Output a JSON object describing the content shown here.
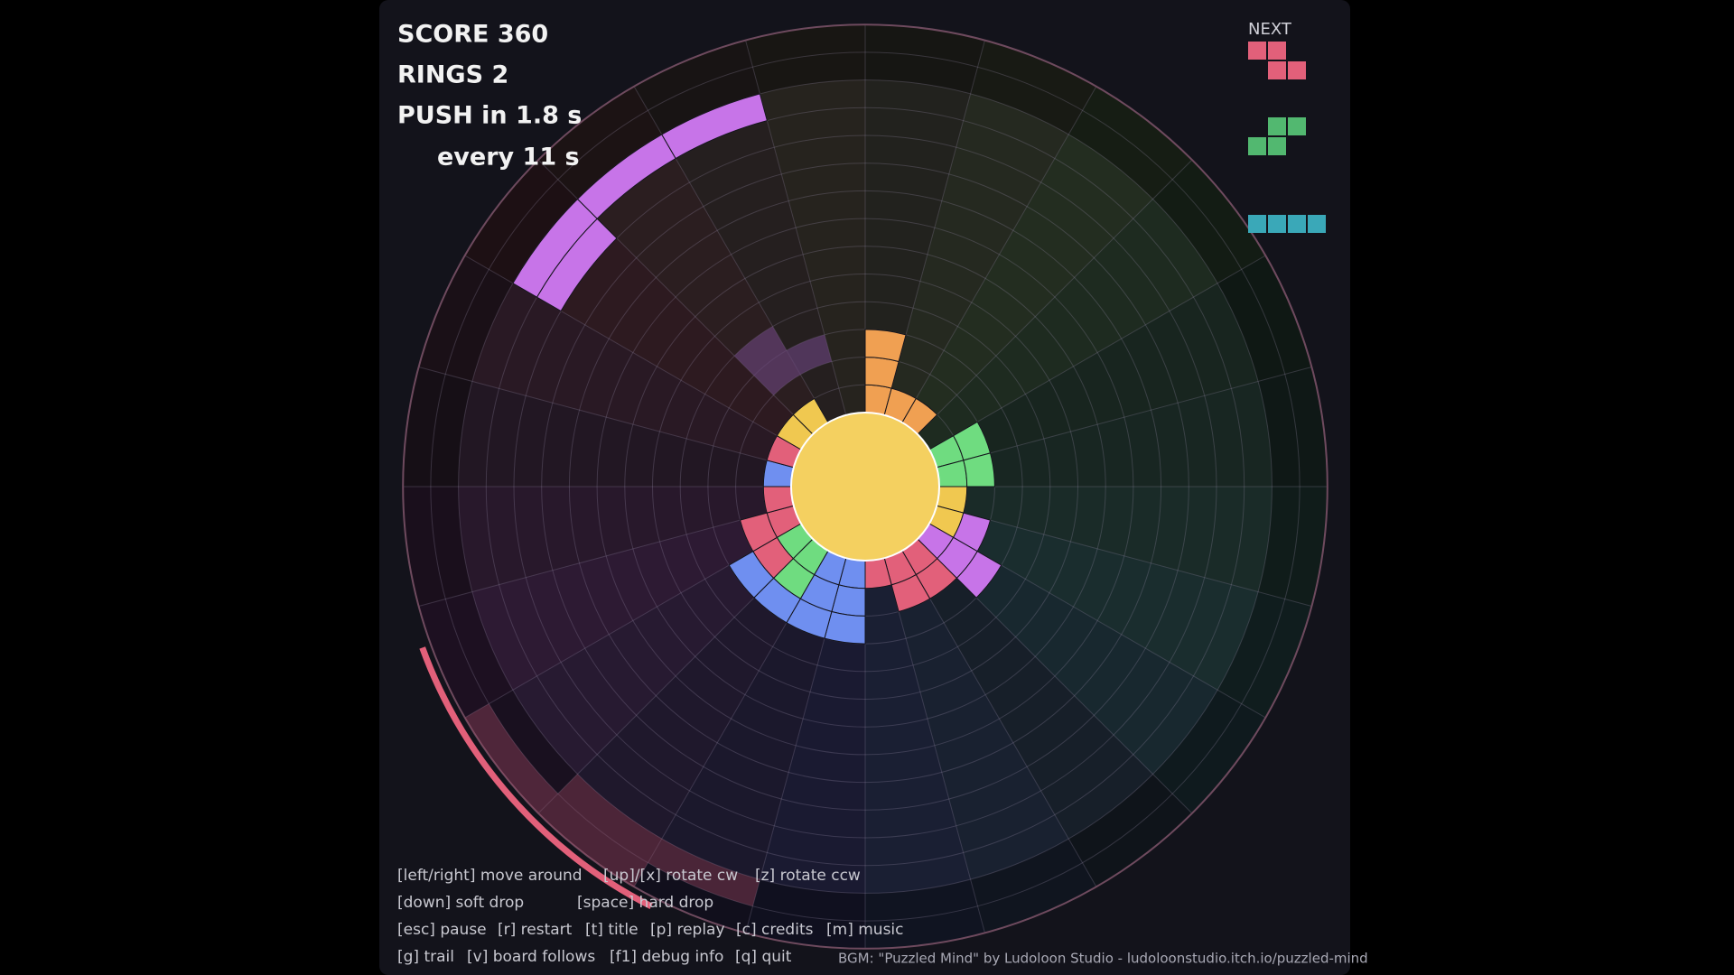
{
  "hud": {
    "score": "SCORE  360",
    "rings": "RINGS  2",
    "push": "PUSH in 1.8 s",
    "every": "every 11 s"
  },
  "next_label": "NEXT",
  "controls": {
    "lines": [
      [
        "[left/right] move around",
        "[up]/[x] rotate cw",
        "[z] rotate ccw"
      ],
      [
        "[down] soft drop",
        "[space] hard drop"
      ],
      [
        "[esc] pause",
        "[r] restart",
        "[t] title",
        "[p] replay",
        "[c] credits",
        "[m] music"
      ],
      [
        "[g] trail",
        "[v] board follows",
        "[f1] debug info",
        "[q] quit"
      ]
    ]
  },
  "credit": "BGM: \"Puzzled Mind\" by Ludoloon Studio - ludoloonstudio.itch.io/puzzled-mind"
}
